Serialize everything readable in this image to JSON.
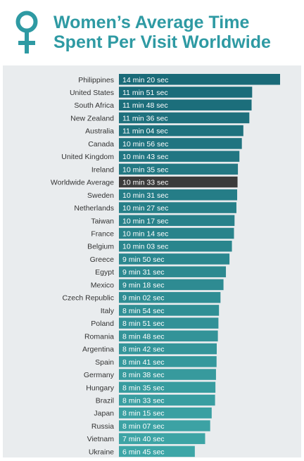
{
  "title": {
    "line1": "Women’s Average Time",
    "line2": "Spent Per Visit Worldwide"
  },
  "icon": "female-symbol-icon",
  "colors": {
    "title": "#2e9aa3",
    "bar_dark": "#1a6a78",
    "bar_light": "#3ea6a7",
    "highlight_bar": "#3b3b3b",
    "panel_background": "#e9ecee"
  },
  "chart_data": {
    "type": "bar",
    "orientation": "horizontal",
    "value_unit": "seconds",
    "highlight": "Worldwide Average",
    "categories": [
      "Philippines",
      "United States",
      "South Africa",
      "New Zealand",
      "Australia",
      "Canada",
      "United Kingdom",
      "Ireland",
      "Worldwide Average",
      "Sweden",
      "Netherlands",
      "Taiwan",
      "France",
      "Belgium",
      "Greece",
      "Egypt",
      "Mexico",
      "Czech Republic",
      "Italy",
      "Poland",
      "Romania",
      "Argentina",
      "Spain",
      "Germany",
      "Hungary",
      "Brazil",
      "Japan",
      "Russia",
      "Vietnam",
      "Ukraine"
    ],
    "values": [
      860,
      711,
      708,
      696,
      664,
      656,
      643,
      635,
      633,
      631,
      627,
      617,
      614,
      603,
      590,
      571,
      558,
      542,
      534,
      531,
      528,
      522,
      521,
      518,
      515,
      513,
      495,
      487,
      460,
      405
    ],
    "value_labels": [
      "14 min 20 sec",
      "11 min 51 sec",
      "11 min 48 sec",
      "11 min 36 sec",
      "11 min 04 sec",
      "10 min 56 sec",
      "10 min 43 sec",
      "10 min 35 sec",
      "10 min 33 sec",
      "10 min 31 sec",
      "10 min 27 sec",
      "10 min 17 sec",
      "10 min 14 sec",
      "10 min 03 sec",
      "9 min 50 sec",
      "9 min 31 sec",
      "9 min 18 sec",
      "9 min 02 sec",
      "8 min 54 sec",
      "8 min 51 sec",
      "8 min 48 sec",
      "8 min 42 sec",
      "8 min 41 sec",
      "8 min 38 sec",
      "8 min 35 sec",
      "8 min 33 sec",
      "8 min 15 sec",
      "8 min 07 sec",
      "7 min 40 sec",
      "6 min 45 sec"
    ],
    "xlim": [
      0,
      860
    ],
    "xlabel": "",
    "ylabel": "",
    "grid": false,
    "legend": "none"
  }
}
